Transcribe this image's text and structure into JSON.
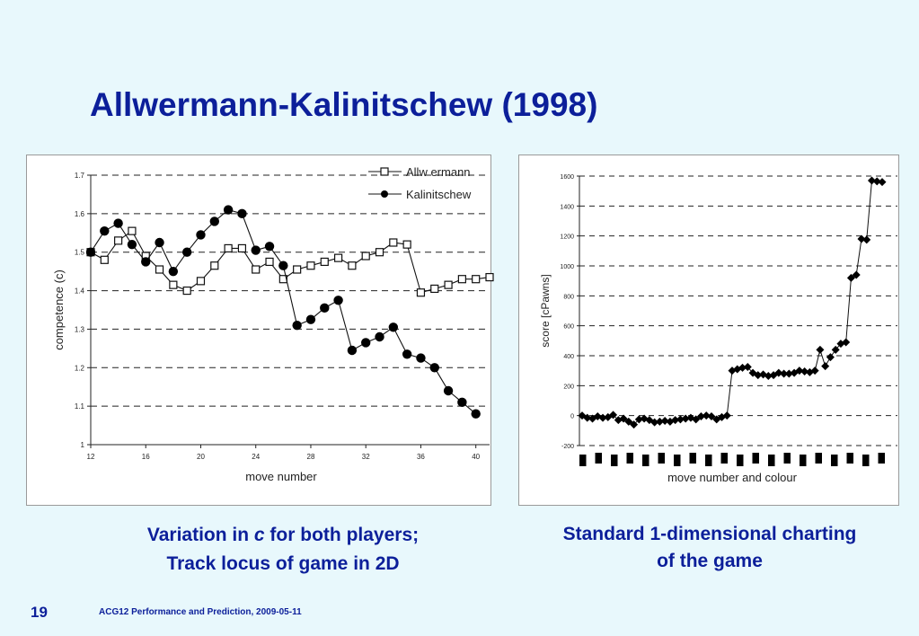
{
  "slide": {
    "title": "Allwermann-Kalinitschew (1998)",
    "caption_left_line1_pre": "Variation in ",
    "caption_left_line1_var": "c",
    "caption_left_line1_post": " for both players;",
    "caption_left_line2": "Track locus of game in 2D",
    "caption_right_line1": "Standard 1-dimensional charting",
    "caption_right_line2": "of the game",
    "page_number": "19",
    "footer": "ACG12 Performance and Prediction, 2009-05-11"
  },
  "colors": {
    "title": "#0c1f9a",
    "background": "#e8f8fc",
    "marker": "#000000"
  },
  "chart_data": [
    {
      "type": "line",
      "xlabel": "move number",
      "ylabel": "competence (c)",
      "xlim": [
        12,
        41
      ],
      "ylim": [
        1,
        1.7
      ],
      "xticks": [
        12,
        16,
        20,
        24,
        28,
        32,
        36,
        40
      ],
      "xtick_labels": [
        "12",
        "16",
        "20",
        "24",
        "28",
        "32",
        "36",
        "40"
      ],
      "yticks": [
        1,
        1.1,
        1.2,
        1.3,
        1.4,
        1.5,
        1.6,
        1.7
      ],
      "ytick_labels": [
        "1",
        "1.1",
        "1.2",
        "1.3",
        "1.4",
        "1.5",
        "1.6",
        "1.7"
      ],
      "grid": "horizontal dashed",
      "legend": "top-right",
      "series": [
        {
          "name": "Allw ermann",
          "marker": "open-square",
          "x": [
            12,
            13,
            14,
            15,
            16,
            17,
            18,
            19,
            20,
            21,
            22,
            23,
            24,
            25,
            26,
            27,
            28,
            29,
            30,
            31,
            32,
            33,
            34,
            35,
            36,
            37,
            38,
            39,
            40,
            41
          ],
          "values": [
            1.5,
            1.48,
            1.53,
            1.555,
            1.49,
            1.455,
            1.415,
            1.4,
            1.425,
            1.465,
            1.51,
            1.51,
            1.455,
            1.475,
            1.43,
            1.455,
            1.465,
            1.475,
            1.485,
            1.465,
            1.49,
            1.5,
            1.525,
            1.52,
            1.395,
            1.405,
            1.415,
            1.43,
            1.43,
            1.435
          ]
        },
        {
          "name": "Kalinitschew",
          "marker": "filled-circle",
          "x": [
            12,
            13,
            14,
            15,
            16,
            17,
            18,
            19,
            20,
            21,
            22,
            23,
            24,
            25,
            26,
            27,
            28,
            29,
            30,
            31,
            32,
            33,
            34,
            35,
            36,
            37,
            38,
            39,
            40
          ],
          "values": [
            1.5,
            1.555,
            1.575,
            1.52,
            1.475,
            1.525,
            1.45,
            1.5,
            1.545,
            1.58,
            1.61,
            1.6,
            1.505,
            1.515,
            1.465,
            1.31,
            1.325,
            1.355,
            1.375,
            1.245,
            1.265,
            1.28,
            1.305,
            1.235,
            1.225,
            1.2,
            1.14,
            1.11,
            1.08
          ]
        }
      ]
    },
    {
      "type": "scatter",
      "xlabel": "move number and colour",
      "ylabel": "score [cPawns]",
      "ylim": [
        -200,
        1600
      ],
      "yticks": [
        -200,
        0,
        200,
        400,
        600,
        800,
        1000,
        1200,
        1400,
        1600
      ],
      "ytick_labels": [
        "-200",
        "0",
        "200",
        "400",
        "600",
        "800",
        "1000",
        "1200",
        "1400",
        "1600"
      ],
      "grid": "horizontal dashed",
      "marker": "filled-diamond",
      "x": [
        1,
        2,
        3,
        4,
        5,
        6,
        7,
        8,
        9,
        10,
        11,
        12,
        13,
        14,
        15,
        16,
        17,
        18,
        19,
        20,
        21,
        22,
        23,
        24,
        25,
        26,
        27,
        28,
        29,
        30,
        31,
        32,
        33,
        34,
        35,
        36,
        37,
        38,
        39,
        40,
        41,
        42,
        43,
        44,
        45,
        46,
        47,
        48,
        49,
        50,
        51,
        52,
        53,
        54,
        55,
        56,
        57,
        58,
        59
      ],
      "values": [
        0,
        -15,
        -20,
        -5,
        -15,
        -10,
        5,
        -30,
        -20,
        -40,
        -60,
        -25,
        -20,
        -30,
        -45,
        -40,
        -35,
        -40,
        -30,
        -25,
        -20,
        -15,
        -25,
        -5,
        0,
        -5,
        -25,
        -10,
        0,
        300,
        310,
        320,
        325,
        285,
        270,
        275,
        265,
        270,
        285,
        280,
        280,
        285,
        300,
        295,
        290,
        300,
        440,
        330,
        390,
        440,
        480,
        490,
        920,
        940,
        1180,
        1175,
        1570,
        1565,
        1560
      ],
      "colour_bands": {
        "count": 20,
        "offset_pattern": [
          "low",
          "high"
        ]
      }
    }
  ]
}
